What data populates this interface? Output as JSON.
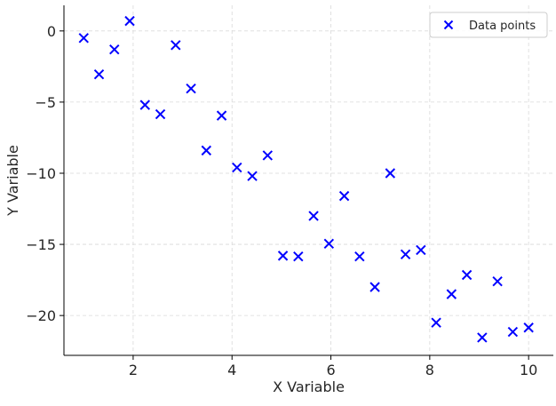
{
  "chart_data": {
    "type": "scatter",
    "xlabel": "X Variable",
    "ylabel": "Y Variable",
    "xlim": [
      0.6,
      10.5
    ],
    "ylim": [
      -22.8,
      1.8
    ],
    "x_ticks": [
      2,
      4,
      6,
      8,
      10
    ],
    "y_ticks": [
      0,
      -5,
      -10,
      -15,
      -20
    ],
    "x_tick_labels": [
      "2",
      "4",
      "6",
      "8",
      "10"
    ],
    "y_tick_labels": [
      "0",
      "−5",
      "−10",
      "−15",
      "−20"
    ],
    "grid": true,
    "legend_position": "top-right",
    "marker": "x",
    "series": [
      {
        "name": "Data points",
        "color": "#0000ff",
        "points": [
          {
            "x": 1.0,
            "y": -0.5
          },
          {
            "x": 1.31,
            "y": -3.05
          },
          {
            "x": 1.62,
            "y": -1.3
          },
          {
            "x": 1.93,
            "y": 0.7
          },
          {
            "x": 2.24,
            "y": -5.2
          },
          {
            "x": 2.55,
            "y": -5.85
          },
          {
            "x": 2.86,
            "y": -1.0
          },
          {
            "x": 3.17,
            "y": -4.05
          },
          {
            "x": 3.48,
            "y": -8.4
          },
          {
            "x": 3.79,
            "y": -5.95
          },
          {
            "x": 4.1,
            "y": -9.6
          },
          {
            "x": 4.41,
            "y": -10.2
          },
          {
            "x": 4.72,
            "y": -8.75
          },
          {
            "x": 5.03,
            "y": -15.8
          },
          {
            "x": 5.34,
            "y": -15.85
          },
          {
            "x": 5.65,
            "y": -13.0
          },
          {
            "x": 5.96,
            "y": -14.95
          },
          {
            "x": 6.27,
            "y": -11.6
          },
          {
            "x": 6.58,
            "y": -15.85
          },
          {
            "x": 6.89,
            "y": -18.0
          },
          {
            "x": 7.2,
            "y": -10.0
          },
          {
            "x": 7.51,
            "y": -15.7
          },
          {
            "x": 7.82,
            "y": -15.4
          },
          {
            "x": 8.13,
            "y": -20.5
          },
          {
            "x": 8.44,
            "y": -18.5
          },
          {
            "x": 8.75,
            "y": -17.15
          },
          {
            "x": 9.06,
            "y": -21.55
          },
          {
            "x": 9.37,
            "y": -17.6
          },
          {
            "x": 9.68,
            "y": -21.15
          },
          {
            "x": 10.0,
            "y": -20.85
          }
        ]
      }
    ]
  }
}
